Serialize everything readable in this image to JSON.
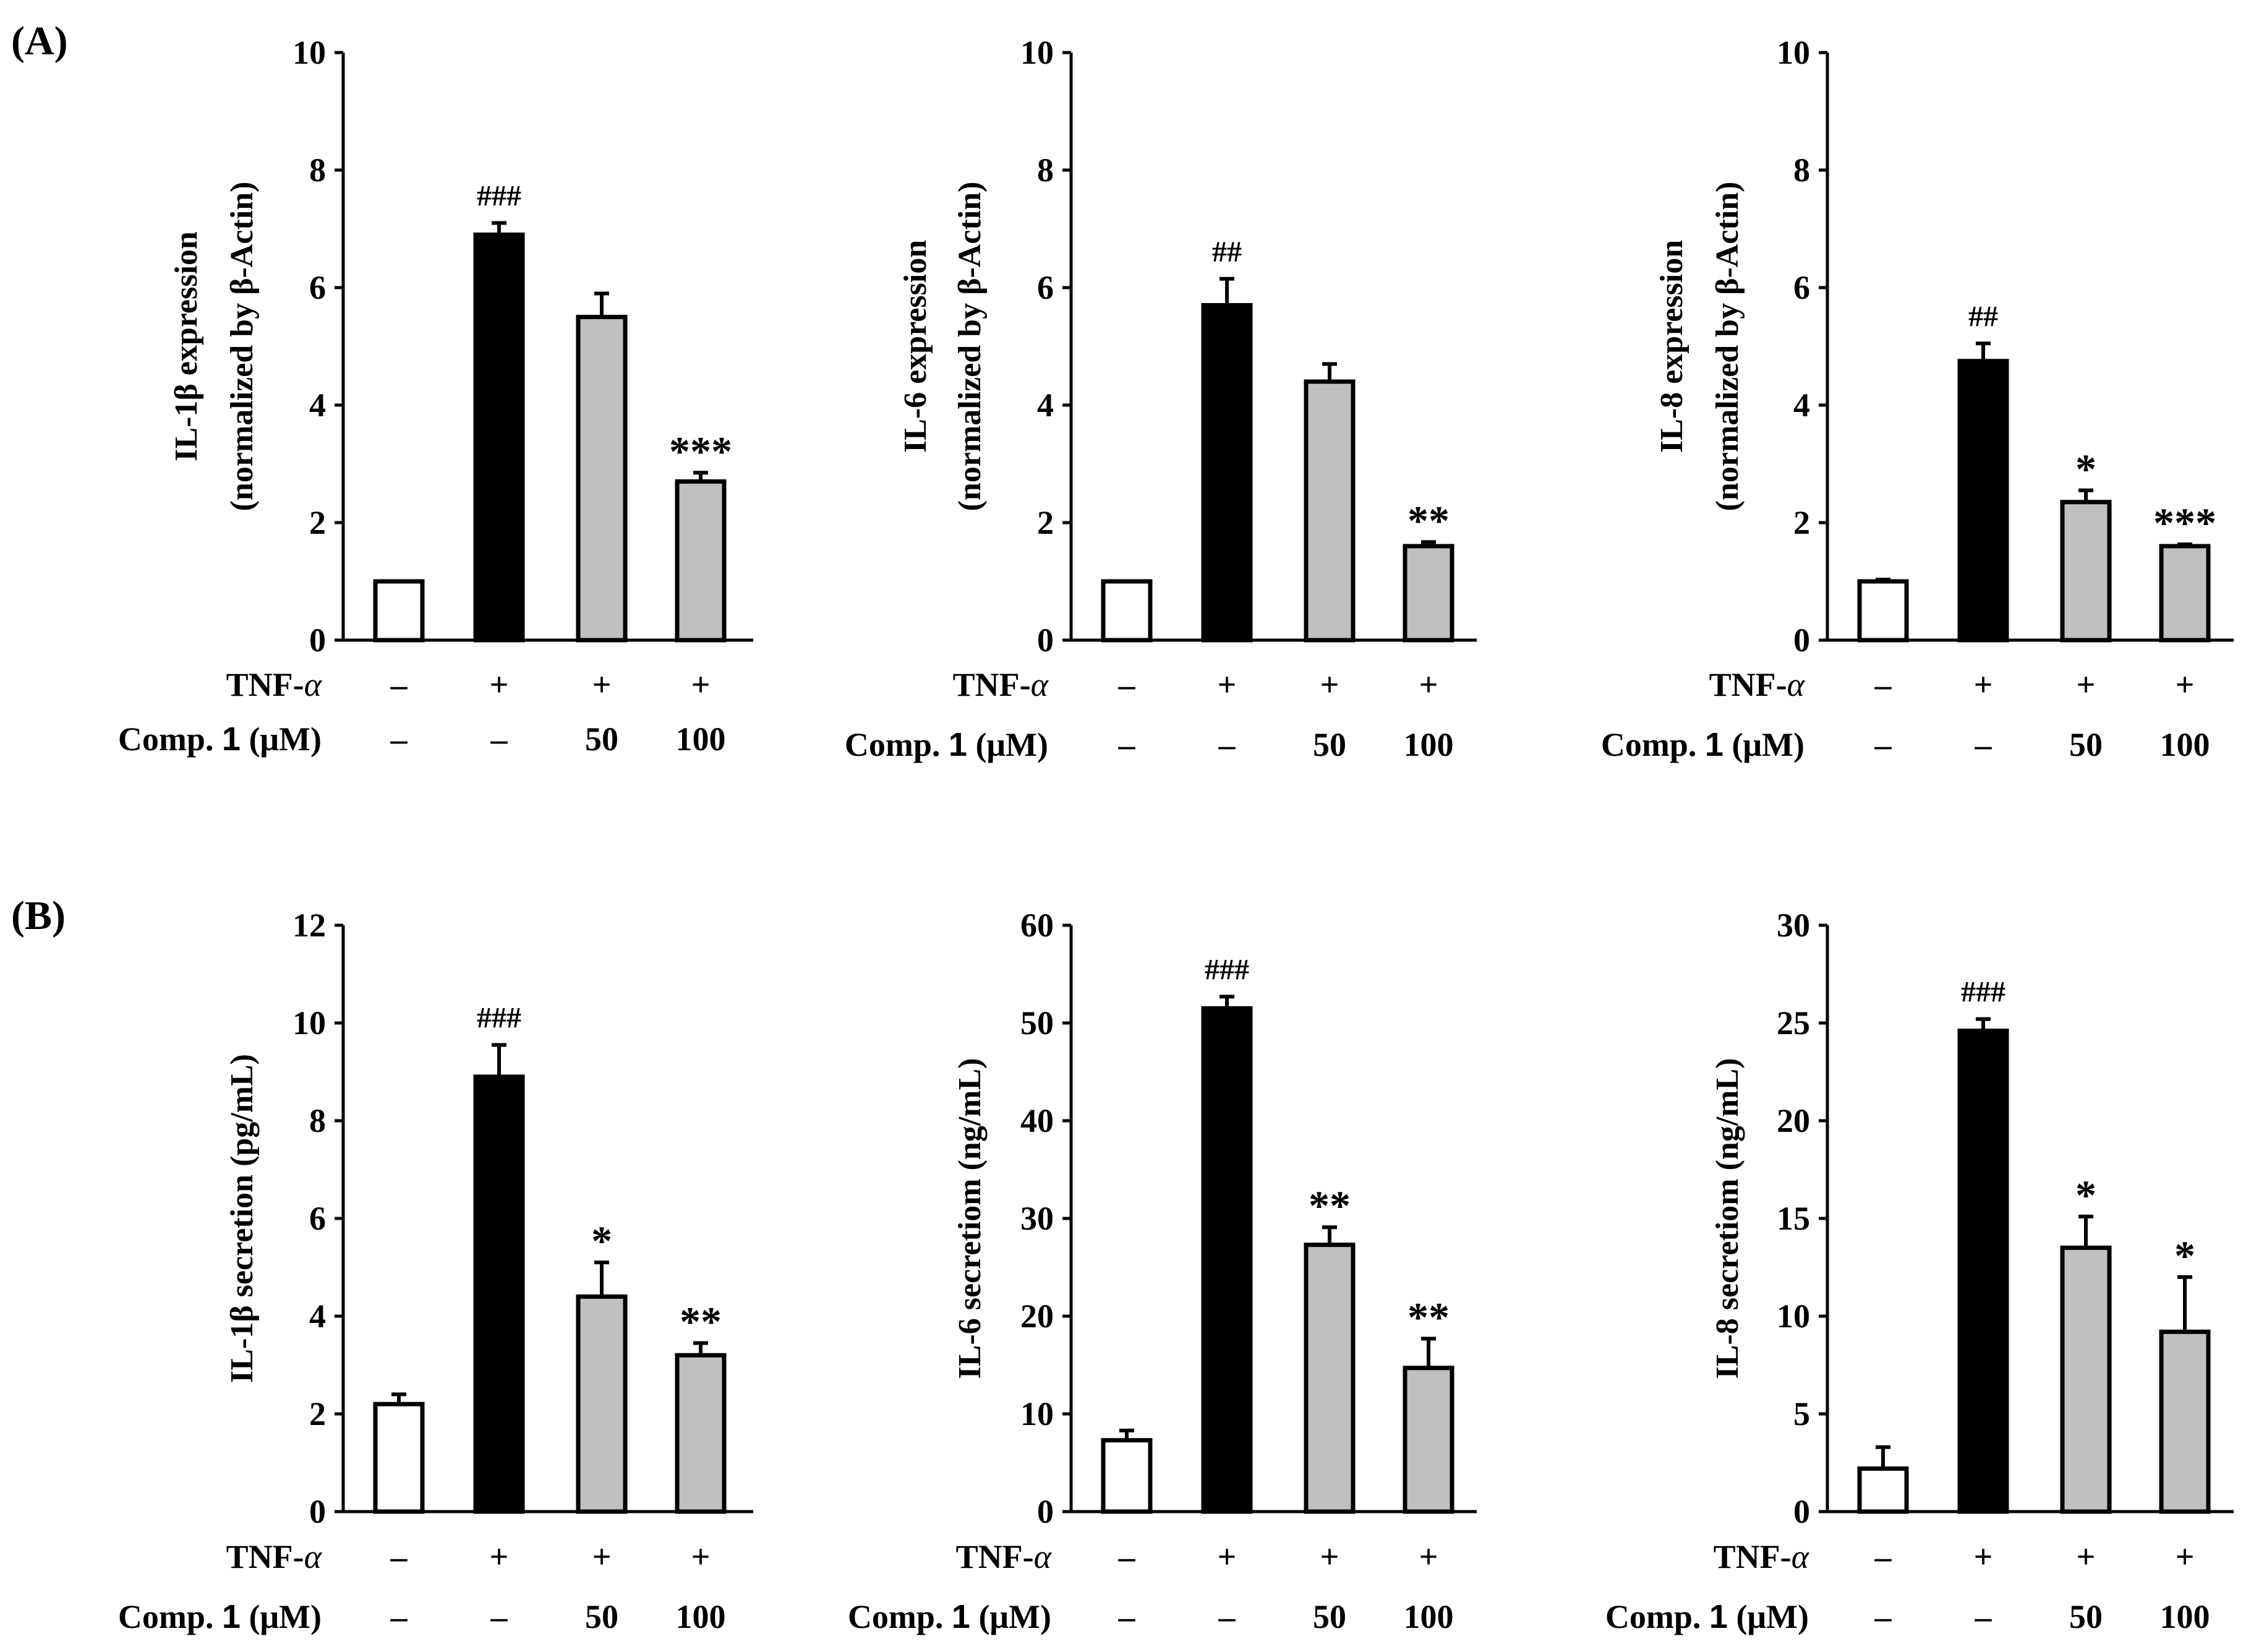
{
  "figure": {
    "panel_labels": [
      "(A)",
      "(B)"
    ]
  },
  "colors": {
    "control": "#ffffff",
    "tnf": "#000000",
    "treated": "#c0c0c0",
    "axis": "#000000"
  },
  "conditions": {
    "tnf_label": "TNF-",
    "tnf_symbol": "α",
    "comp_label_prefix": "Comp. ",
    "comp_label_number": "1",
    "comp_label_unit": " (μM)",
    "tnf_values": [
      "–",
      "+",
      "+",
      "+"
    ],
    "comp_values": [
      "–",
      "–",
      "50",
      "100"
    ]
  },
  "chart_data": [
    {
      "type": "bar",
      "panel": "A",
      "ylabel": "IL-1β expression",
      "ylabel2": "(normalized by β-Actin)",
      "ylim": [
        0,
        10
      ],
      "yticks": [
        0,
        2,
        4,
        6,
        8,
        10
      ],
      "categories": [
        "Control",
        "TNF-α",
        "TNF-α + Comp. 1 50 μM",
        "TNF-α + Comp. 1 100 μM"
      ],
      "values": [
        1.0,
        6.9,
        5.5,
        2.7
      ],
      "errors": [
        0,
        0.2,
        0.4,
        0.15
      ],
      "annotations": [
        "",
        "###",
        "",
        "***"
      ]
    },
    {
      "type": "bar",
      "panel": "A",
      "ylabel": "IL-6 expression",
      "ylabel2": "(normalized by β-Actin)",
      "ylim": [
        0,
        10
      ],
      "yticks": [
        0,
        2,
        4,
        6,
        8,
        10
      ],
      "categories": [
        "Control",
        "TNF-α",
        "TNF-α + Comp. 1 50 μM",
        "TNF-α + Comp. 1 100 μM"
      ],
      "values": [
        1.0,
        5.7,
        4.4,
        1.6
      ],
      "errors": [
        0,
        0.45,
        0.3,
        0.07
      ],
      "annotations": [
        "",
        "##",
        "",
        "**"
      ]
    },
    {
      "type": "bar",
      "panel": "A",
      "ylabel": "IL-8 expression",
      "ylabel2": "(normalized by β-Actin)",
      "ylim": [
        0,
        10
      ],
      "yticks": [
        0,
        2,
        4,
        6,
        8,
        10
      ],
      "categories": [
        "Control",
        "TNF-α",
        "TNF-α + Comp. 1 50 μM",
        "TNF-α + Comp. 1 100 μM"
      ],
      "values": [
        1.0,
        4.75,
        2.35,
        1.6
      ],
      "errors": [
        0.03,
        0.3,
        0.2,
        0.03
      ],
      "annotations": [
        "",
        "##",
        "*",
        "***"
      ]
    },
    {
      "type": "bar",
      "panel": "B",
      "ylabel": "IL-1β secretion (pg/mL)",
      "ylim": [
        0,
        12
      ],
      "yticks": [
        0,
        2,
        4,
        6,
        8,
        10,
        12
      ],
      "categories": [
        "Control",
        "TNF-α",
        "TNF-α + Comp. 1 50 μM",
        "TNF-α + Comp. 1 100 μM"
      ],
      "values": [
        2.2,
        8.9,
        4.4,
        3.2
      ],
      "errors": [
        0.2,
        0.65,
        0.7,
        0.25
      ],
      "annotations": [
        "",
        "###",
        "*",
        "**"
      ]
    },
    {
      "type": "bar",
      "panel": "B",
      "ylabel": "IL-6 secretiom (ng/mL)",
      "ylim": [
        0,
        60
      ],
      "yticks": [
        0,
        10,
        20,
        30,
        40,
        50,
        60
      ],
      "categories": [
        "Control",
        "TNF-α",
        "TNF-α + Comp. 1 50 μM",
        "TNF-α + Comp. 1 100 μM"
      ],
      "values": [
        7.3,
        51.5,
        27.3,
        14.7
      ],
      "errors": [
        1.0,
        1.2,
        1.8,
        3.0
      ],
      "annotations": [
        "",
        "###",
        "**",
        "**"
      ]
    },
    {
      "type": "bar",
      "panel": "B",
      "ylabel": "IL-8 secretiom (ng/mL)",
      "ylim": [
        0,
        30
      ],
      "yticks": [
        0,
        5,
        10,
        15,
        20,
        25,
        30
      ],
      "categories": [
        "Control",
        "TNF-α",
        "TNF-α + Comp. 1 50 μM",
        "TNF-α + Comp. 1 100 μM"
      ],
      "values": [
        2.2,
        24.6,
        13.5,
        9.2
      ],
      "errors": [
        1.1,
        0.6,
        1.6,
        2.8
      ],
      "annotations": [
        "",
        "###",
        "*",
        "*"
      ]
    }
  ]
}
